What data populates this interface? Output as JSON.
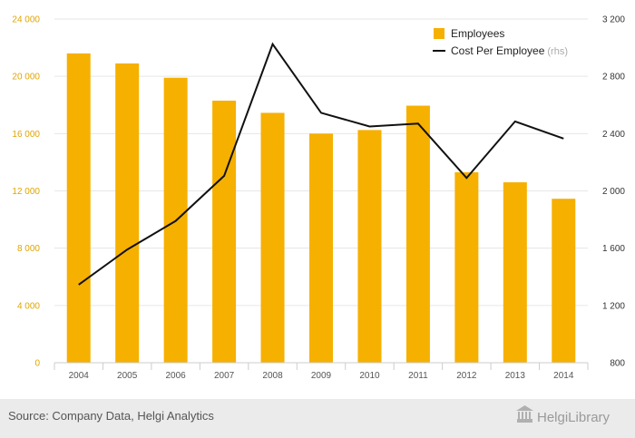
{
  "chart_data": {
    "type": "bar",
    "categories": [
      "2004",
      "2005",
      "2006",
      "2007",
      "2008",
      "2009",
      "2010",
      "2011",
      "2012",
      "2013",
      "2014"
    ],
    "series": [
      {
        "name": "Employees",
        "type": "bar",
        "axis": "left",
        "color": "#f6b000",
        "values": [
          21600,
          20900,
          19900,
          18300,
          17450,
          16000,
          16250,
          17950,
          13300,
          12600,
          11450
        ]
      },
      {
        "name": "Cost Per Employee",
        "name_suffix": "(rhs)",
        "type": "line",
        "axis": "right",
        "color": "#111111",
        "values": [
          1345,
          1590,
          1790,
          2105,
          3025,
          2545,
          2450,
          2470,
          2090,
          2485,
          2365
        ]
      }
    ],
    "y_left": {
      "range": [
        0,
        24000
      ],
      "ticks": [
        0,
        4000,
        8000,
        12000,
        16000,
        20000,
        24000
      ],
      "tick_labels": [
        "0",
        "4 000",
        "8 000",
        "12 000",
        "16 000",
        "20 000",
        "24 000"
      ]
    },
    "y_right": {
      "range": [
        800,
        3200
      ],
      "ticks": [
        800,
        1200,
        1600,
        2000,
        2400,
        2800,
        3200
      ],
      "tick_labels": [
        "800",
        "1 200",
        "1 600",
        "2 000",
        "2 400",
        "2 800",
        "3 200"
      ]
    },
    "grid": true,
    "legend_position": "top-right"
  },
  "footer": {
    "source": "Source: Company Data, Helgi Analytics",
    "brand": "HelgiLibrary"
  }
}
